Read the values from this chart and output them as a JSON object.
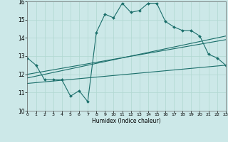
{
  "title": "",
  "xlabel": "Humidex (Indice chaleur)",
  "bg_color": "#cce8e8",
  "line_color": "#1a6e6a",
  "xlim": [
    0,
    23
  ],
  "ylim": [
    10,
    16
  ],
  "xticks": [
    0,
    1,
    2,
    3,
    4,
    5,
    6,
    7,
    8,
    9,
    10,
    11,
    12,
    13,
    14,
    15,
    16,
    17,
    18,
    19,
    20,
    21,
    22,
    23
  ],
  "yticks": [
    10,
    11,
    12,
    13,
    14,
    15,
    16
  ],
  "series1_x": [
    0,
    1,
    2,
    3,
    4,
    5,
    6,
    7,
    8,
    9,
    10,
    11,
    12,
    13,
    14,
    15,
    16,
    17,
    18,
    19,
    20,
    21,
    22,
    23
  ],
  "series1_y": [
    12.9,
    12.5,
    11.7,
    11.7,
    11.7,
    10.8,
    11.1,
    10.5,
    14.3,
    15.3,
    15.1,
    15.9,
    15.4,
    15.5,
    15.9,
    15.9,
    14.9,
    14.6,
    14.4,
    14.4,
    14.1,
    13.1,
    12.9,
    12.5
  ],
  "series2_x": [
    0,
    23
  ],
  "series2_y": [
    12.0,
    13.9
  ],
  "series3_x": [
    0,
    23
  ],
  "series3_y": [
    11.8,
    14.1
  ],
  "series4_x": [
    0,
    23
  ],
  "series4_y": [
    11.5,
    12.5
  ]
}
